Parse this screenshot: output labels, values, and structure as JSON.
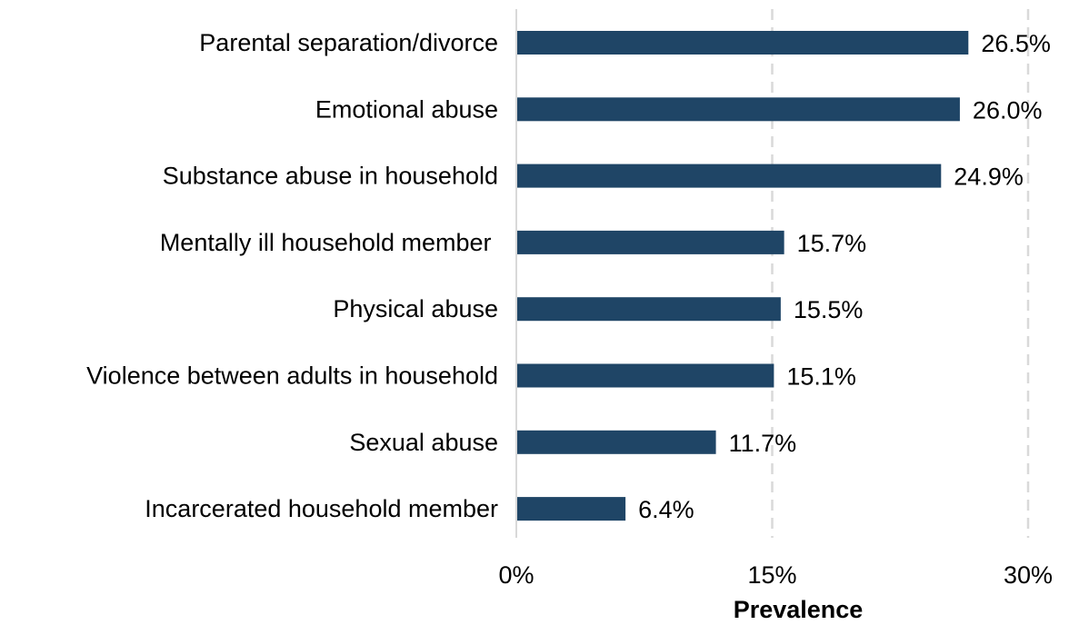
{
  "chart_data": {
    "type": "bar",
    "orientation": "horizontal",
    "categories": [
      "Parental separation/divorce",
      "Emotional abuse",
      "Substance abuse in household",
      "Mentally ill household member ",
      "Physical abuse",
      "Violence between adults in household",
      "Sexual abuse",
      "Incarcerated household member"
    ],
    "values": [
      26.5,
      26.0,
      24.9,
      15.7,
      15.5,
      15.1,
      11.7,
      6.4
    ],
    "data_labels": [
      "26.5%",
      "26.0%",
      "24.9%",
      "15.7%",
      "15.5%",
      "15.1%",
      "11.7%",
      "6.4%"
    ],
    "xlabel": "Prevalence",
    "ylabel": "",
    "xlim": [
      0,
      30
    ],
    "xticks": [
      0,
      15,
      30
    ],
    "xtick_labels": [
      "0%",
      "15%",
      "30%"
    ],
    "grid": "vertical-dashed",
    "bar_color": "#1f4566"
  }
}
